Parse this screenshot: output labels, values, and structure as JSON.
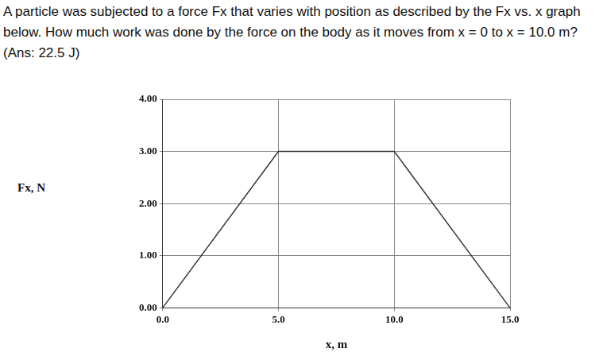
{
  "chart_data": {
    "type": "line",
    "title": "A particle was subjected to a force Fx that varies with position as described by the Fx vs. x graph below. How much work was done by the force on the body as it moves from x = 0 to x = 10.0 m? (Ans: 22.5 J)",
    "x_label": "x, m",
    "y_label": "Fx, N",
    "x": [
      0,
      5,
      10,
      15
    ],
    "values": [
      0,
      3,
      3,
      0
    ],
    "color": "#333333",
    "xlim": [
      0,
      15
    ],
    "xticks": [
      {
        "value": 0,
        "label": "0.0"
      },
      {
        "value": 5,
        "label": "5.0"
      },
      {
        "value": 10,
        "label": "10.0"
      },
      {
        "value": 15,
        "label": "15.0"
      }
    ],
    "ylim": [
      0,
      4
    ],
    "yticks": [
      {
        "value": 0,
        "label": "0.00"
      },
      {
        "value": 1,
        "label": "1.00"
      },
      {
        "value": 2,
        "label": "2.00"
      },
      {
        "value": 3,
        "label": "3.00"
      },
      {
        "value": 4,
        "label": "4.00"
      }
    ],
    "grid": true
  }
}
